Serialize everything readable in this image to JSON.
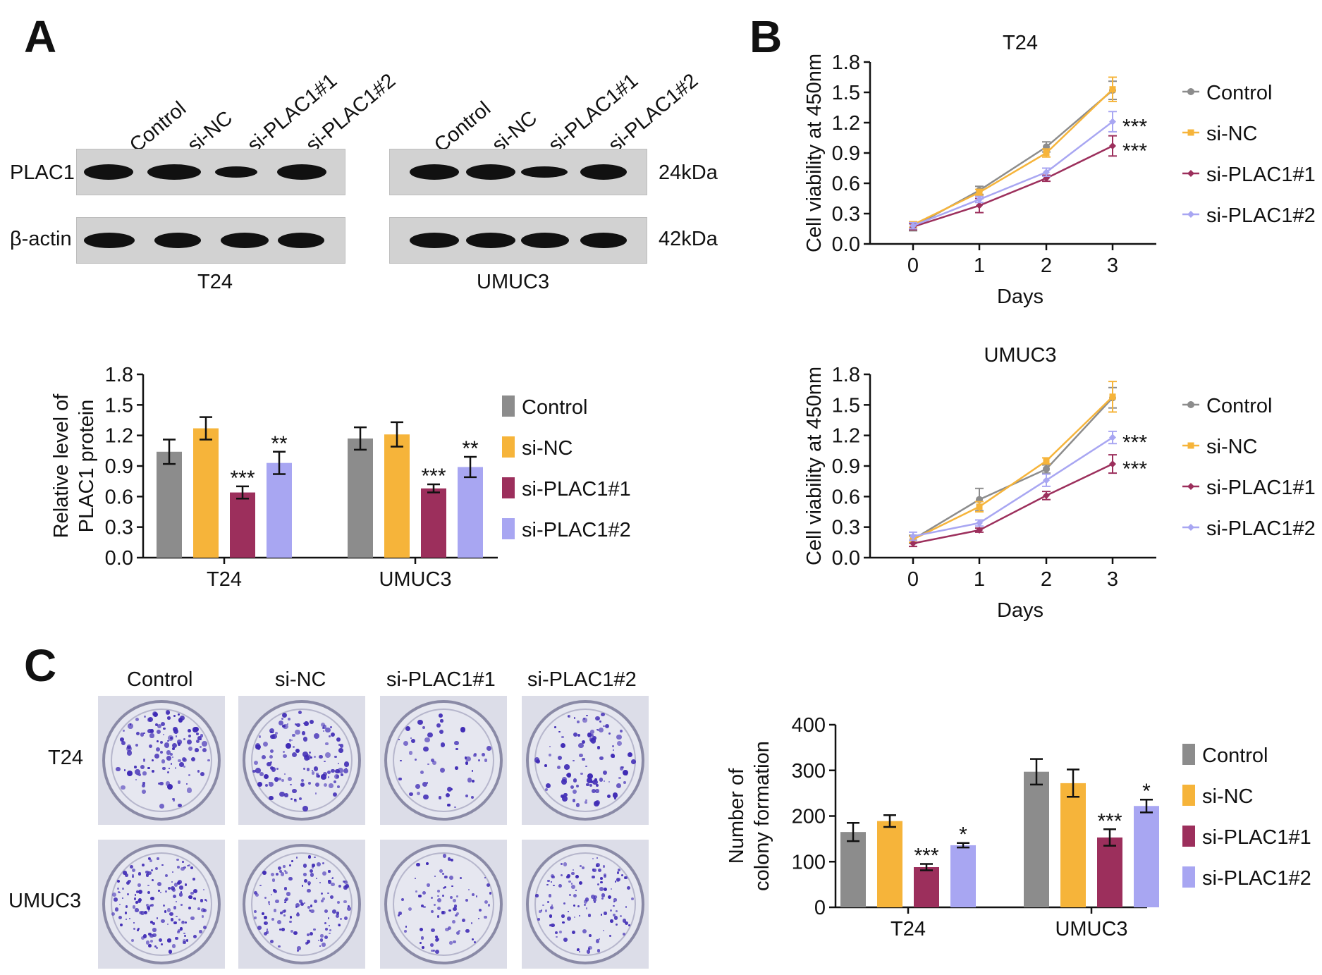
{
  "panels": {
    "a": "A",
    "b": "B",
    "c": "C"
  },
  "colors": {
    "Control": "#8c8c8c",
    "si-NC": "#f6b43a",
    "si-PLAC1#1": "#9c2f5c",
    "si-PLAC1#2": "#a8a6f2",
    "band": "#111111",
    "blot_bg": "#d2d2d2",
    "colony": "#3f2bb5"
  },
  "western_blot": {
    "lane_labels": [
      "Control",
      "si-NC",
      "si-PLAC1#1",
      "si-PLAC1#2"
    ],
    "rows": [
      {
        "label": "PLAC1",
        "size": "24kDa"
      },
      {
        "label": "β-actin",
        "size": "42kDa"
      }
    ],
    "cell_lines": [
      "T24",
      "UMUC3"
    ]
  },
  "colony_images": {
    "column_labels": [
      "Control",
      "si-NC",
      "si-PLAC1#1",
      "si-PLAC1#2"
    ],
    "row_labels": [
      "T24",
      "UMUC3"
    ],
    "colony_density": [
      [
        1.0,
        1.05,
        0.45,
        0.85
      ],
      [
        1.3,
        1.1,
        0.7,
        1.0
      ]
    ]
  },
  "chart_data": [
    {
      "id": "A-bar",
      "type": "bar",
      "title": "",
      "xlabel": "",
      "ylabel": "Relative level of PLAC1 protein",
      "ylabel_lines": [
        "Relative level of",
        "PLAC1 protein"
      ],
      "ylim": [
        0,
        1.8
      ],
      "yticks": [
        "0.0",
        "0.3",
        "0.6",
        "0.9",
        "1.2",
        "1.5",
        "1.8"
      ],
      "categories": [
        "T24",
        "UMUC3"
      ],
      "legend_position": "right",
      "series": [
        {
          "name": "Control",
          "values": [
            1.04,
            1.17
          ],
          "errors": [
            0.12,
            0.11
          ],
          "sig": [
            "",
            ""
          ]
        },
        {
          "name": "si-NC",
          "values": [
            1.27,
            1.21
          ],
          "errors": [
            0.11,
            0.12
          ],
          "sig": [
            "",
            ""
          ]
        },
        {
          "name": "si-PLAC1#1",
          "values": [
            0.64,
            0.68
          ],
          "errors": [
            0.06,
            0.04
          ],
          "sig": [
            "***",
            "***"
          ]
        },
        {
          "name": "si-PLAC1#2",
          "values": [
            0.93,
            0.89
          ],
          "errors": [
            0.11,
            0.1
          ],
          "sig": [
            "**",
            "**"
          ]
        }
      ]
    },
    {
      "id": "B-T24",
      "type": "line",
      "title": "T24",
      "xlabel": "Days",
      "ylabel": "Cell viability at 450nm",
      "x": [
        0,
        1,
        2,
        3
      ],
      "ylim": [
        0,
        1.8
      ],
      "yticks": [
        "0.0",
        "0.3",
        "0.6",
        "0.9",
        "1.2",
        "1.5",
        "1.8"
      ],
      "xticks": [
        "0",
        "1",
        "2",
        "3"
      ],
      "legend_position": "right",
      "series": [
        {
          "name": "Control",
          "marker": "circle",
          "values": [
            0.17,
            0.53,
            0.96,
            1.52
          ],
          "errors": [
            0.04,
            0.04,
            0.05,
            0.09
          ],
          "sig": ""
        },
        {
          "name": "si-NC",
          "marker": "square",
          "values": [
            0.19,
            0.51,
            0.9,
            1.53
          ],
          "errors": [
            0.03,
            0.03,
            0.04,
            0.12
          ],
          "sig": ""
        },
        {
          "name": "si-PLAC1#1",
          "marker": "diamond",
          "values": [
            0.17,
            0.38,
            0.65,
            0.97
          ],
          "errors": [
            0.03,
            0.07,
            0.03,
            0.1
          ],
          "sig": "***"
        },
        {
          "name": "si-PLAC1#2",
          "marker": "diamond",
          "values": [
            0.18,
            0.44,
            0.71,
            1.21
          ],
          "errors": [
            0.03,
            0.03,
            0.04,
            0.1
          ],
          "sig": "***"
        }
      ]
    },
    {
      "id": "B-UMUC3",
      "type": "line",
      "title": "UMUC3",
      "xlabel": "Days",
      "ylabel": "Cell viability at 450nm",
      "x": [
        0,
        1,
        2,
        3
      ],
      "ylim": [
        0,
        1.8
      ],
      "yticks": [
        "0.0",
        "0.3",
        "0.6",
        "0.9",
        "1.2",
        "1.5",
        "1.8"
      ],
      "xticks": [
        "0",
        "1",
        "2",
        "3"
      ],
      "legend_position": "right",
      "series": [
        {
          "name": "Control",
          "marker": "circle",
          "values": [
            0.18,
            0.57,
            0.87,
            1.57
          ],
          "errors": [
            0.04,
            0.11,
            0.04,
            0.1
          ],
          "sig": ""
        },
        {
          "name": "si-NC",
          "marker": "square",
          "values": [
            0.18,
            0.5,
            0.95,
            1.58
          ],
          "errors": [
            0.03,
            0.05,
            0.03,
            0.15
          ],
          "sig": ""
        },
        {
          "name": "si-PLAC1#1",
          "marker": "diamond",
          "values": [
            0.14,
            0.27,
            0.61,
            0.92
          ],
          "errors": [
            0.03,
            0.02,
            0.04,
            0.09
          ],
          "sig": "***"
        },
        {
          "name": "si-PLAC1#2",
          "marker": "diamond",
          "values": [
            0.21,
            0.34,
            0.76,
            1.18
          ],
          "errors": [
            0.04,
            0.03,
            0.06,
            0.06
          ],
          "sig": "***"
        }
      ]
    },
    {
      "id": "C-bar",
      "type": "bar",
      "title": "",
      "xlabel": "",
      "ylabel": "Number of colony formation",
      "ylabel_lines": [
        "Number of",
        "colony formation"
      ],
      "ylim": [
        0,
        400
      ],
      "yticks": [
        "0",
        "100",
        "200",
        "300",
        "400"
      ],
      "categories": [
        "T24",
        "UMUC3"
      ],
      "legend_position": "right",
      "series": [
        {
          "name": "Control",
          "values": [
            165,
            297
          ],
          "errors": [
            20,
            28
          ],
          "sig": [
            "",
            ""
          ]
        },
        {
          "name": "si-NC",
          "values": [
            189,
            272
          ],
          "errors": [
            13,
            30
          ],
          "sig": [
            "",
            ""
          ]
        },
        {
          "name": "si-PLAC1#1",
          "values": [
            88,
            153
          ],
          "errors": [
            7,
            18
          ],
          "sig": [
            "***",
            "***"
          ]
        },
        {
          "name": "si-PLAC1#2",
          "values": [
            136,
            222
          ],
          "errors": [
            5,
            14
          ],
          "sig": [
            "*",
            "*"
          ]
        }
      ]
    }
  ]
}
